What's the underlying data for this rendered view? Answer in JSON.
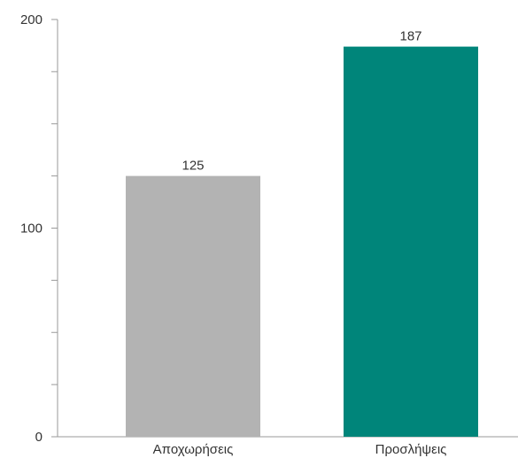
{
  "chart_data": {
    "type": "bar",
    "categories": [
      "Αποχωρήσεις",
      "Προσλήψεις"
    ],
    "values": [
      125,
      187
    ],
    "bar_colors": [
      "#b3b3b3",
      "#00857a"
    ],
    "ylim": [
      0,
      200
    ],
    "y_tick_labels": [
      0,
      100,
      200
    ],
    "y_minor_ticks": [
      25,
      50,
      75,
      125,
      150,
      175
    ],
    "data_labels": [
      "125",
      "187"
    ],
    "grid": false,
    "legend": "none",
    "axis_color": "#999999",
    "text_color": "#333333"
  }
}
